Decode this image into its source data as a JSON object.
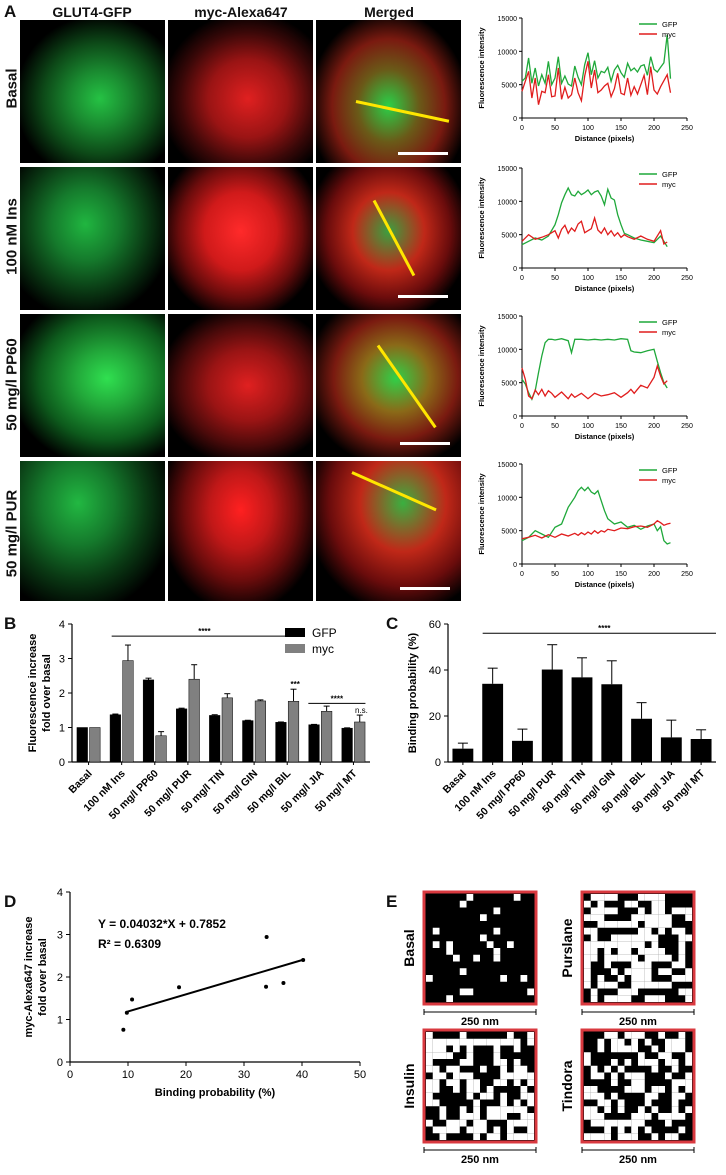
{
  "panels": {
    "A": "A",
    "B": "B",
    "C": "C",
    "D": "D",
    "E": "E"
  },
  "panel_a": {
    "column_headers": [
      "GLUT4-GFP",
      "myc-Alexa647",
      "Merged"
    ],
    "row_labels": [
      "Basal",
      "100 nM Ins",
      "50 mg/l PP60",
      "50 mg/l PUR"
    ],
    "colors": {
      "gfp": "#1fa83a",
      "myc": "#e01d1d",
      "line": "#ffe600"
    }
  },
  "profiles": {
    "xlabel": "Distance (pixels)",
    "ylabel": "Fluorescence intensity",
    "legend": [
      "GFP",
      "myc"
    ],
    "xticks": [
      "0",
      "50",
      "100",
      "150",
      "200",
      "250"
    ],
    "yticks": [
      "0",
      "5000",
      "10000",
      "15000"
    ]
  },
  "chart_data": [
    {
      "type": "line",
      "title": "",
      "xlabel": "Distance (pixels)",
      "ylabel": "Fluorescence intensity",
      "xlim": [
        0,
        250
      ],
      "ylim": [
        0,
        15000
      ],
      "series": [
        {
          "name": "GFP",
          "color": "#1fa83a",
          "x": [
            0,
            5,
            10,
            15,
            20,
            25,
            30,
            35,
            40,
            45,
            50,
            55,
            60,
            65,
            70,
            75,
            80,
            85,
            90,
            95,
            100,
            105,
            110,
            115,
            120,
            125,
            130,
            135,
            140,
            145,
            150,
            155,
            160,
            165,
            170,
            175,
            180,
            185,
            190,
            195,
            200,
            205,
            210,
            215,
            220,
            225
          ],
          "values": [
            5500,
            6000,
            9000,
            5200,
            7500,
            4800,
            6500,
            5200,
            8500,
            5000,
            6000,
            9200,
            5200,
            6300,
            5100,
            4800,
            7800,
            6100,
            5000,
            8000,
            9800,
            6500,
            8600,
            6000,
            7000,
            6800,
            7600,
            5500,
            7200,
            7900,
            6800,
            6100,
            8200,
            7100,
            7500,
            6900,
            7800,
            8000,
            6400,
            9200,
            7300,
            6900,
            7600,
            8300,
            12500,
            5900
          ]
        },
        {
          "name": "myc",
          "color": "#e01d1d",
          "x": [
            0,
            5,
            10,
            15,
            20,
            25,
            30,
            35,
            40,
            45,
            50,
            55,
            60,
            65,
            70,
            75,
            80,
            85,
            90,
            95,
            100,
            105,
            110,
            115,
            120,
            125,
            130,
            135,
            140,
            145,
            150,
            155,
            160,
            165,
            170,
            175,
            180,
            185,
            190,
            195,
            200,
            205,
            210,
            215,
            220,
            225
          ],
          "values": [
            4000,
            5500,
            7000,
            3000,
            6000,
            2000,
            4000,
            3800,
            6500,
            3200,
            3300,
            7500,
            2800,
            4600,
            3000,
            3500,
            6000,
            3800,
            2600,
            6300,
            8500,
            4500,
            7200,
            3800,
            4200,
            4800,
            5200,
            3200,
            4400,
            6700,
            3700,
            3500,
            6000,
            3400,
            4700,
            3600,
            5000,
            6400,
            3500,
            7700,
            4200,
            3600,
            4700,
            5600,
            6500,
            3800
          ]
        }
      ]
    },
    {
      "type": "line",
      "title": "",
      "xlabel": "Distance (pixels)",
      "ylabel": "Fluorescence intensity",
      "xlim": [
        0,
        250
      ],
      "ylim": [
        0,
        15000
      ],
      "series": [
        {
          "name": "GFP",
          "color": "#1fa83a",
          "x": [
            0,
            10,
            20,
            30,
            40,
            50,
            55,
            60,
            65,
            70,
            75,
            80,
            85,
            90,
            95,
            100,
            105,
            110,
            115,
            120,
            125,
            130,
            135,
            140,
            145,
            150,
            155,
            160,
            170,
            180,
            190,
            200,
            210,
            215,
            220
          ],
          "values": [
            3500,
            4000,
            4500,
            4200,
            4800,
            6500,
            8000,
            9800,
            11000,
            12000,
            11000,
            10800,
            11500,
            11000,
            11300,
            11700,
            11000,
            11400,
            11600,
            10800,
            9500,
            11800,
            10500,
            10200,
            8000,
            6500,
            5200,
            5000,
            4500,
            4200,
            4000,
            3800,
            4800,
            4000,
            3200
          ]
        },
        {
          "name": "myc",
          "color": "#e01d1d",
          "x": [
            0,
            10,
            20,
            30,
            40,
            50,
            55,
            60,
            65,
            70,
            75,
            80,
            85,
            90,
            95,
            100,
            105,
            110,
            115,
            120,
            125,
            130,
            135,
            140,
            145,
            150,
            155,
            160,
            170,
            180,
            190,
            200,
            210,
            215,
            220
          ],
          "values": [
            4000,
            5000,
            4300,
            4600,
            5000,
            5600,
            4500,
            5800,
            6400,
            5200,
            6000,
            5500,
            6600,
            7000,
            5300,
            5600,
            5900,
            7500,
            5700,
            5200,
            6000,
            5000,
            5600,
            4800,
            5300,
            4600,
            5000,
            4700,
            4300,
            4800,
            4300,
            4000,
            5600,
            3600,
            3900
          ]
        }
      ]
    },
    {
      "type": "line",
      "title": "",
      "xlabel": "Distance (pixels)",
      "ylabel": "Fluorescence intensity",
      "xlim": [
        0,
        250
      ],
      "ylim": [
        0,
        15000
      ],
      "series": [
        {
          "name": "GFP",
          "color": "#1fa83a",
          "x": [
            0,
            5,
            10,
            15,
            20,
            25,
            30,
            35,
            40,
            45,
            50,
            60,
            70,
            75,
            80,
            90,
            100,
            110,
            120,
            130,
            140,
            150,
            160,
            165,
            170,
            180,
            190,
            200,
            205,
            210,
            215,
            220
          ],
          "values": [
            5500,
            4800,
            3500,
            2500,
            3800,
            6500,
            9000,
            11000,
            11500,
            11500,
            11400,
            11600,
            11300,
            9500,
            11500,
            11500,
            11400,
            11500,
            11400,
            11500,
            11400,
            11600,
            11500,
            9800,
            9600,
            9500,
            9800,
            10000,
            8200,
            6500,
            5000,
            4200
          ]
        },
        {
          "name": "myc",
          "color": "#e01d1d",
          "x": [
            0,
            5,
            10,
            15,
            20,
            25,
            30,
            35,
            40,
            45,
            50,
            60,
            70,
            75,
            80,
            90,
            100,
            110,
            120,
            130,
            140,
            150,
            160,
            165,
            170,
            180,
            190,
            200,
            205,
            210,
            215,
            220
          ],
          "values": [
            7200,
            5500,
            3000,
            2600,
            3900,
            3200,
            4000,
            3000,
            3800,
            3400,
            2800,
            3600,
            2600,
            3300,
            2800,
            3400,
            2600,
            3400,
            3000,
            3200,
            3500,
            2800,
            3500,
            4000,
            3400,
            4600,
            4200,
            5800,
            7500,
            6000,
            4800,
            5300
          ]
        }
      ]
    },
    {
      "type": "line",
      "title": "",
      "xlabel": "Distance (pixels)",
      "ylabel": "Fluorescence intensity",
      "xlim": [
        0,
        250
      ],
      "ylim": [
        0,
        15000
      ],
      "series": [
        {
          "name": "GFP",
          "color": "#1fa83a",
          "x": [
            0,
            10,
            20,
            30,
            40,
            50,
            60,
            70,
            80,
            85,
            90,
            95,
            100,
            105,
            110,
            115,
            120,
            125,
            130,
            140,
            150,
            160,
            170,
            180,
            190,
            200,
            205,
            210,
            215,
            220,
            225
          ],
          "values": [
            3500,
            4000,
            5000,
            4500,
            4000,
            5500,
            6000,
            8500,
            10000,
            11000,
            11500,
            11000,
            11500,
            10800,
            10500,
            11000,
            9500,
            8000,
            6800,
            6000,
            6300,
            5500,
            5800,
            5200,
            5700,
            6000,
            5000,
            5600,
            3500,
            3000,
            3200
          ]
        },
        {
          "name": "myc",
          "color": "#e01d1d",
          "x": [
            0,
            10,
            20,
            30,
            40,
            50,
            60,
            70,
            80,
            85,
            90,
            95,
            100,
            105,
            110,
            115,
            120,
            125,
            130,
            140,
            150,
            160,
            170,
            180,
            190,
            200,
            205,
            210,
            215,
            220,
            225
          ],
          "values": [
            3800,
            4000,
            4300,
            3900,
            4400,
            4000,
            4500,
            4200,
            4600,
            4300,
            4700,
            4400,
            4800,
            4500,
            5000,
            4600,
            5000,
            4800,
            5200,
            5000,
            5400,
            5300,
            5600,
            5700,
            5500,
            6000,
            6500,
            6200,
            5800,
            6000,
            6100
          ]
        }
      ]
    },
    {
      "type": "bar",
      "title": "",
      "ylabel": "Fluorescence increase\nfold over basal",
      "ylim": [
        0,
        4
      ],
      "categories": [
        "Basal",
        "100 nM Ins",
        "50 mg/l PP60",
        "50 mg/l PUR",
        "50 mg/l TIN",
        "50 mg/l GIN",
        "50 mg/l BIL",
        "50 mg/l JIA",
        "50 mg/l MT"
      ],
      "series": [
        {
          "name": "GFP",
          "color": "#000000",
          "values": [
            1.0,
            1.37,
            2.38,
            1.54,
            1.35,
            1.2,
            1.15,
            1.08,
            0.98
          ],
          "errors": [
            0,
            0.02,
            0.05,
            0.02,
            0.02,
            0.01,
            0.01,
            0.01,
            0.01
          ]
        },
        {
          "name": "myc",
          "color": "#808080",
          "values": [
            1.0,
            2.94,
            0.76,
            2.4,
            1.86,
            1.77,
            1.76,
            1.47,
            1.16
          ],
          "errors": [
            0,
            0.45,
            0.12,
            0.42,
            0.12,
            0.03,
            0.35,
            0.15,
            0.2
          ]
        }
      ],
      "annotations": [
        "****",
        "***",
        "****",
        "n.s."
      ],
      "legend": "top-right"
    },
    {
      "type": "bar",
      "title": "",
      "ylabel": "Binding probability (%)",
      "ylim": [
        0,
        60
      ],
      "categories": [
        "Basal",
        "100 nM Ins",
        "50 mg/l PP60",
        "50 mg/l PUR",
        "50 mg/l TIN",
        "50 mg/l GIN",
        "50 mg/l BIL",
        "50 mg/l JIA",
        "50 mg/l MT"
      ],
      "values": [
        5.8,
        34.0,
        9.2,
        40.2,
        36.8,
        33.8,
        18.8,
        10.7,
        10.0
      ],
      "errors": [
        2.4,
        6.8,
        5.1,
        10.8,
        8.5,
        10.2,
        7.0,
        7.5,
        4.0
      ],
      "annotations": [
        "****"
      ]
    },
    {
      "type": "scatter",
      "title": "",
      "xlabel": "Binding probability (%)",
      "ylabel": "myc-Alexa647 increase\nfold over basal",
      "xlim": [
        0,
        50
      ],
      "ylim": [
        0,
        4
      ],
      "x": [
        9.2,
        9.8,
        10.7,
        18.8,
        33.8,
        33.9,
        36.8,
        40.2
      ],
      "values": [
        0.76,
        1.16,
        1.47,
        1.76,
        1.77,
        2.94,
        1.86,
        2.4
      ],
      "fit": {
        "slope": 0.04032,
        "intercept": 0.7852,
        "x_range": [
          9.8,
          40.2
        ]
      },
      "equation": "Y = 0.04032*X + 0.7852",
      "r2": "R² = 0.6309"
    }
  ],
  "panel_b": {
    "legend": [
      "GFP",
      "myc"
    ],
    "stars_main": "****",
    "stars_bil": "***",
    "stars_jia": "****",
    "ns": "n.s."
  },
  "panel_c": {
    "stars": "****"
  },
  "panel_d": {
    "equation": "Y = 0.04032*X + 0.7852",
    "r2": "R² = 0.6309"
  },
  "panel_e": {
    "labels": [
      "Basal",
      "Purslane",
      "Insulin",
      "Tindora"
    ],
    "scale": "250 nm",
    "fill_fraction": [
      0.08,
      0.5,
      0.5,
      0.5
    ],
    "border_color": "#d9393f"
  }
}
